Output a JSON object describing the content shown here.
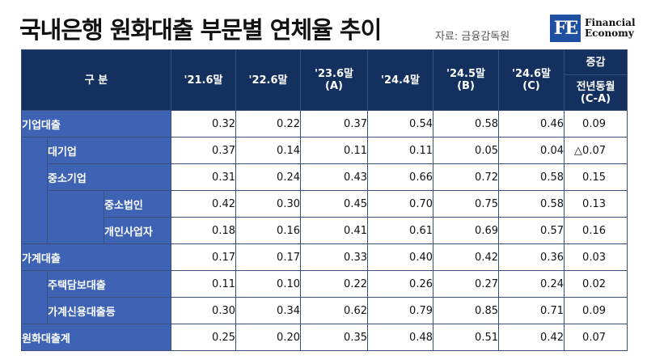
{
  "title": "국내은행 원화대출 부문별 연체율 추이",
  "source": "자료: 금융감독원",
  "logo": {
    "mark": "FE",
    "line1": "Financial",
    "line2": "Economy"
  },
  "header": {
    "category": "구 분",
    "columns": [
      "'21.6말",
      "'22.6말",
      "'23.6말",
      "'24.4말",
      "'24.5말",
      "'24.6말"
    ],
    "column_notes": [
      "",
      "",
      "(A)",
      "",
      "(B)",
      "(C)"
    ],
    "change_top": "증감",
    "change_bottom_1": "전년동월",
    "change_bottom_2": "(C-A)"
  },
  "rows": [
    {
      "label": "기업대출",
      "values": [
        "0.32",
        "0.22",
        "0.37",
        "0.54",
        "0.58",
        "0.46"
      ],
      "change": "0.09"
    },
    {
      "label": "대기업",
      "values": [
        "0.37",
        "0.14",
        "0.11",
        "0.11",
        "0.05",
        "0.04"
      ],
      "change": "△0.07"
    },
    {
      "label": "중소기업",
      "values": [
        "0.31",
        "0.24",
        "0.43",
        "0.66",
        "0.72",
        "0.58"
      ],
      "change": "0.15"
    },
    {
      "label": "중소법인",
      "values": [
        "0.42",
        "0.30",
        "0.45",
        "0.70",
        "0.75",
        "0.58"
      ],
      "change": "0.13"
    },
    {
      "label": "개인사업자",
      "values": [
        "0.18",
        "0.16",
        "0.41",
        "0.61",
        "0.69",
        "0.57"
      ],
      "change": "0.16"
    },
    {
      "label": "가계대출",
      "values": [
        "0.17",
        "0.17",
        "0.33",
        "0.40",
        "0.42",
        "0.36"
      ],
      "change": "0.03"
    },
    {
      "label": "주택담보대출",
      "values": [
        "0.11",
        "0.10",
        "0.22",
        "0.26",
        "0.27",
        "0.24"
      ],
      "change": "0.02"
    },
    {
      "label": "가계신용대출등",
      "values": [
        "0.30",
        "0.34",
        "0.62",
        "0.79",
        "0.85",
        "0.71"
      ],
      "change": "0.09"
    },
    {
      "label": "원화대출계",
      "values": [
        "0.25",
        "0.20",
        "0.35",
        "0.48",
        "0.51",
        "0.42"
      ],
      "change": "0.07"
    }
  ]
}
